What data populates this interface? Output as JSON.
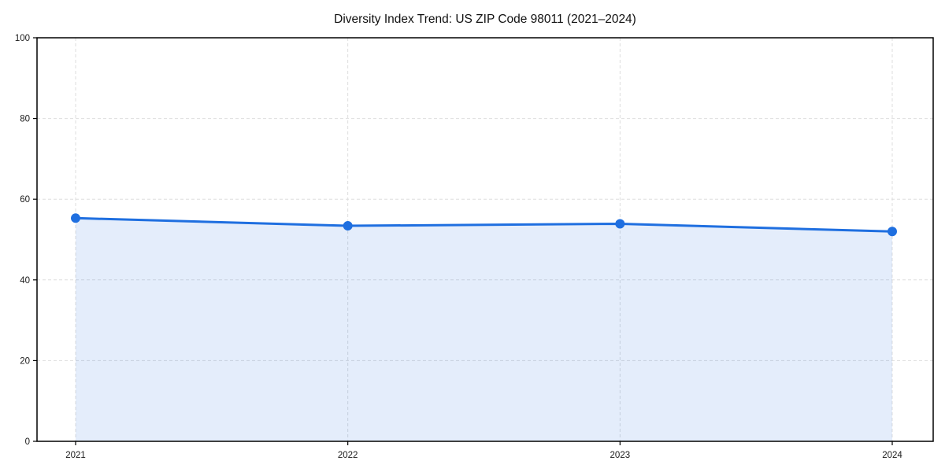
{
  "chart_data": {
    "type": "area",
    "title": "Diversity Index Trend: US ZIP Code 98011 (2021–2024)",
    "categories": [
      "2021",
      "2022",
      "2023",
      "2024"
    ],
    "series": [
      {
        "name": "Diversity Index",
        "values": [
          55.3,
          53.4,
          53.9,
          52.0
        ]
      }
    ],
    "xlabel": "",
    "ylabel": "",
    "ylim": [
      0,
      100
    ],
    "yticks": [
      0,
      20,
      40,
      60,
      80,
      100
    ],
    "grid": {
      "horizontal": true,
      "vertical": true,
      "style": "dashed"
    },
    "legend_position": "none",
    "marker": "circle",
    "colors": {
      "line": "#1f6fe0",
      "marker": "#1f6fe0",
      "fill": "#1f6fe0",
      "fill_opacity": 0.12,
      "gridline": "#dddddd",
      "spine": "#000000",
      "tick_label": "#1a1a1a",
      "title": "#111111",
      "background": "#ffffff"
    }
  }
}
